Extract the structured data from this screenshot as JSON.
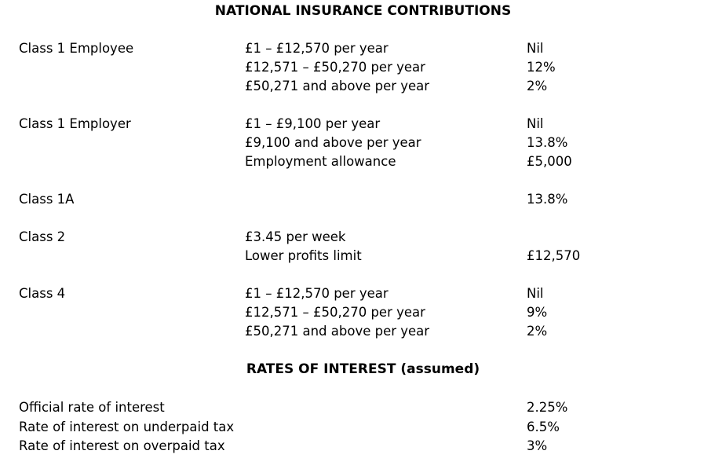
{
  "nic": {
    "title": "NATIONAL INSURANCE CONTRIBUTIONS",
    "groups": [
      {
        "label": "Class 1 Employee",
        "rows": [
          {
            "band": "£1 – £12,570 per year",
            "rate": "Nil"
          },
          {
            "band": "£12,571 – £50,270 per year",
            "rate": "12%"
          },
          {
            "band": "£50,271 and above per year",
            "rate": "2%"
          }
        ]
      },
      {
        "label": "Class 1 Employer",
        "rows": [
          {
            "band": "£1 – £9,100 per year",
            "rate": "Nil"
          },
          {
            "band": "£9,100 and above per year",
            "rate": "13.8%"
          },
          {
            "band": "Employment allowance",
            "rate": "£5,000"
          }
        ]
      },
      {
        "label": "Class 1A",
        "rows": [
          {
            "rate": "13.8%"
          }
        ]
      },
      {
        "label": "Class 2",
        "rows": [
          {
            "band": "£3.45 per week"
          },
          {
            "band": "Lower profits limit",
            "rate": "£12,570"
          }
        ]
      },
      {
        "label": "Class 4",
        "rows": [
          {
            "band": "£1 – £12,570 per year",
            "rate": "Nil"
          },
          {
            "band": "£12,571 – £50,270 per year",
            "rate": "9%"
          },
          {
            "band": "£50,271 and above per year",
            "rate": "2%"
          }
        ]
      }
    ]
  },
  "interest": {
    "title": "RATES OF INTEREST (assumed)",
    "rows": [
      {
        "label": "Official rate of interest",
        "rate": "2.25%"
      },
      {
        "label": "Rate of interest on underpaid tax",
        "rate": "6.5%"
      },
      {
        "label": "Rate of interest on overpaid tax",
        "rate": "3%"
      }
    ]
  }
}
